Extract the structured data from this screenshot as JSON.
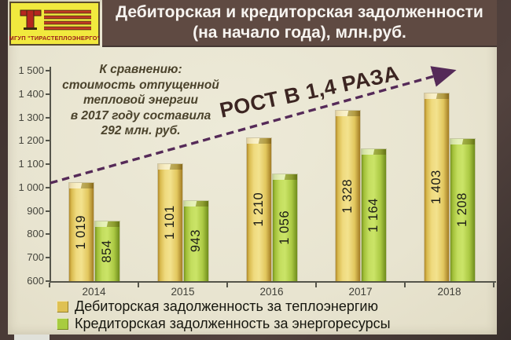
{
  "header": {
    "logo_text": "МГУП \"ТИРАСТЕПЛОЭНЕРГО\"",
    "title_line1": "Дебиторская и кредиторская задолженности",
    "title_line2": "(на начало года), млн.руб."
  },
  "annotation": {
    "line1": "К сравнению:",
    "line2": "стоимость отпущенной",
    "line3": "тепловой энергии",
    "line4": "в 2017 году составила",
    "line5": "292 млн. руб."
  },
  "growth_label": "РОСТ В 1,4 РАЗА",
  "chart_data": {
    "type": "bar",
    "title": "Дебиторская и кредиторская задолженности (на начало года), млн.руб.",
    "categories": [
      "2014",
      "2015",
      "2016",
      "2017",
      "2018"
    ],
    "series": [
      {
        "name": "Дебиторская задолженность за теплоэнергию",
        "color": "#e9d06a",
        "values": [
          1019,
          1101,
          1210,
          1328,
          1403
        ]
      },
      {
        "name": "Кредиторская задолженность за энергоресурсы",
        "color": "#b7d84c",
        "values": [
          854,
          943,
          1056,
          1164,
          1208
        ]
      }
    ],
    "xlabel": "",
    "ylabel": "",
    "ylim": [
      600,
      1500
    ],
    "ytick_step": 100,
    "grid": false,
    "legend_position": "bottom",
    "number_format": "thousands-space",
    "value_labels": "vertical-inside-bar"
  },
  "colors": {
    "header_bg": "#5f4a42",
    "slide_bg": "#e8e4d0",
    "logo_bg": "#f1e93e",
    "logo_text_color": "#9c201c",
    "arrow": "#552a58",
    "growth_text": "#3c2522",
    "annotation_text": "#4b432c",
    "axis_text": "#45453d"
  }
}
